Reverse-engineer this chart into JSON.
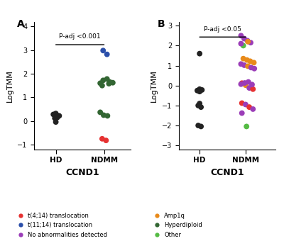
{
  "panel_A": {
    "title": "A",
    "xlabel": "CCND1",
    "ylabel": "LogTMM",
    "pval": "P-adj <0.001",
    "ylim": [
      -1.2,
      4.2
    ],
    "yticks": [
      -1,
      0,
      1,
      2,
      3,
      4
    ],
    "HD": {
      "y": [
        0.28,
        0.32,
        0.12,
        0.22,
        0.15,
        -0.04,
        0.22
      ],
      "colors": [
        "black",
        "black",
        "black",
        "black",
        "black",
        "black",
        "black"
      ],
      "xoff": [
        -0.05,
        0.0,
        -0.02,
        0.05,
        0.03,
        0.0,
        0.07
      ]
    },
    "NDMM": {
      "y": [
        2.98,
        2.82,
        1.6,
        1.72,
        1.78,
        1.65,
        1.62,
        1.5,
        1.58,
        0.37,
        0.25,
        0.22,
        -0.75,
        -0.82
      ],
      "colors": [
        "blue",
        "blue",
        "green",
        "green",
        "green",
        "green",
        "green",
        "green",
        "green",
        "green",
        "green",
        "green",
        "red",
        "red"
      ],
      "xoff": [
        -0.02,
        0.06,
        -0.08,
        -0.02,
        0.06,
        0.12,
        0.18,
        -0.04,
        0.1,
        -0.08,
        -0.01,
        0.07,
        -0.04,
        0.04
      ]
    }
  },
  "panel_B": {
    "title": "B",
    "xlabel": "CCND1",
    "ylabel": "LogTMM",
    "pval": "P-adj <0.05",
    "ylim": [
      -3.2,
      3.2
    ],
    "yticks": [
      -3,
      -2,
      -1,
      0,
      1,
      2,
      3
    ],
    "HD": {
      "y": [
        1.6,
        -0.25,
        -0.22,
        -0.18,
        -0.9,
        -1.0,
        -1.08,
        -2.0,
        -2.05,
        -0.3
      ],
      "colors": [
        "black",
        "black",
        "black",
        "black",
        "black",
        "black",
        "black",
        "black",
        "black",
        "black"
      ],
      "xoff": [
        0.0,
        -0.05,
        0.05,
        0.0,
        0.0,
        -0.03,
        0.03,
        -0.03,
        0.03,
        0.0
      ]
    },
    "NDMM": {
      "y": [
        2.5,
        2.35,
        2.25,
        2.15,
        2.0,
        2.2,
        2.1,
        1.35,
        1.28,
        1.22,
        1.15,
        1.08,
        1.02,
        0.97,
        0.9,
        0.85,
        0.12,
        0.02,
        -0.12,
        -0.18,
        -0.88,
        -0.95,
        -1.08,
        -1.18,
        -1.38,
        -2.05,
        0.07,
        0.13,
        0.18,
        0.05
      ],
      "colors": [
        "purple",
        "purple",
        "purple",
        "purple",
        "green",
        "orange",
        "purple",
        "orange",
        "orange",
        "orange",
        "orange",
        "purple",
        "purple",
        "orange",
        "purple",
        "purple",
        "red",
        "orange",
        "purple",
        "red",
        "red",
        "purple",
        "red",
        "purple",
        "purple",
        "green",
        "purple",
        "purple",
        "purple",
        "purple"
      ],
      "xoff": [
        -0.1,
        -0.03,
        0.04,
        0.11,
        -0.05,
        0.05,
        -0.1,
        -0.05,
        0.03,
        0.1,
        0.18,
        -0.1,
        -0.03,
        0.05,
        0.12,
        0.19,
        -0.08,
        0.0,
        0.08,
        0.16,
        -0.08,
        0.0,
        0.08,
        0.16,
        -0.08,
        0.02,
        -0.1,
        -0.02,
        0.06,
        0.14
      ]
    }
  },
  "colors": {
    "red": "#e63232",
    "blue": "#2b4faa",
    "purple": "#9b3db8",
    "black": "#222222",
    "green_dark": "#336633",
    "orange": "#e88a1a",
    "green_light": "#55bb44"
  },
  "legend_left": [
    {
      "label": "t(4;14) translocation",
      "color": "#e63232"
    },
    {
      "label": "t(11;14) translocation",
      "color": "#2b4faa"
    },
    {
      "label": "No abnormalities detected",
      "color": "#9b3db8"
    }
  ],
  "legend_right": [
    {
      "label": "Amp1q",
      "color": "#e88a1a"
    },
    {
      "label": "Hyperdiploid",
      "color": "#336633"
    },
    {
      "label": "Other",
      "color": "#55bb44"
    }
  ]
}
